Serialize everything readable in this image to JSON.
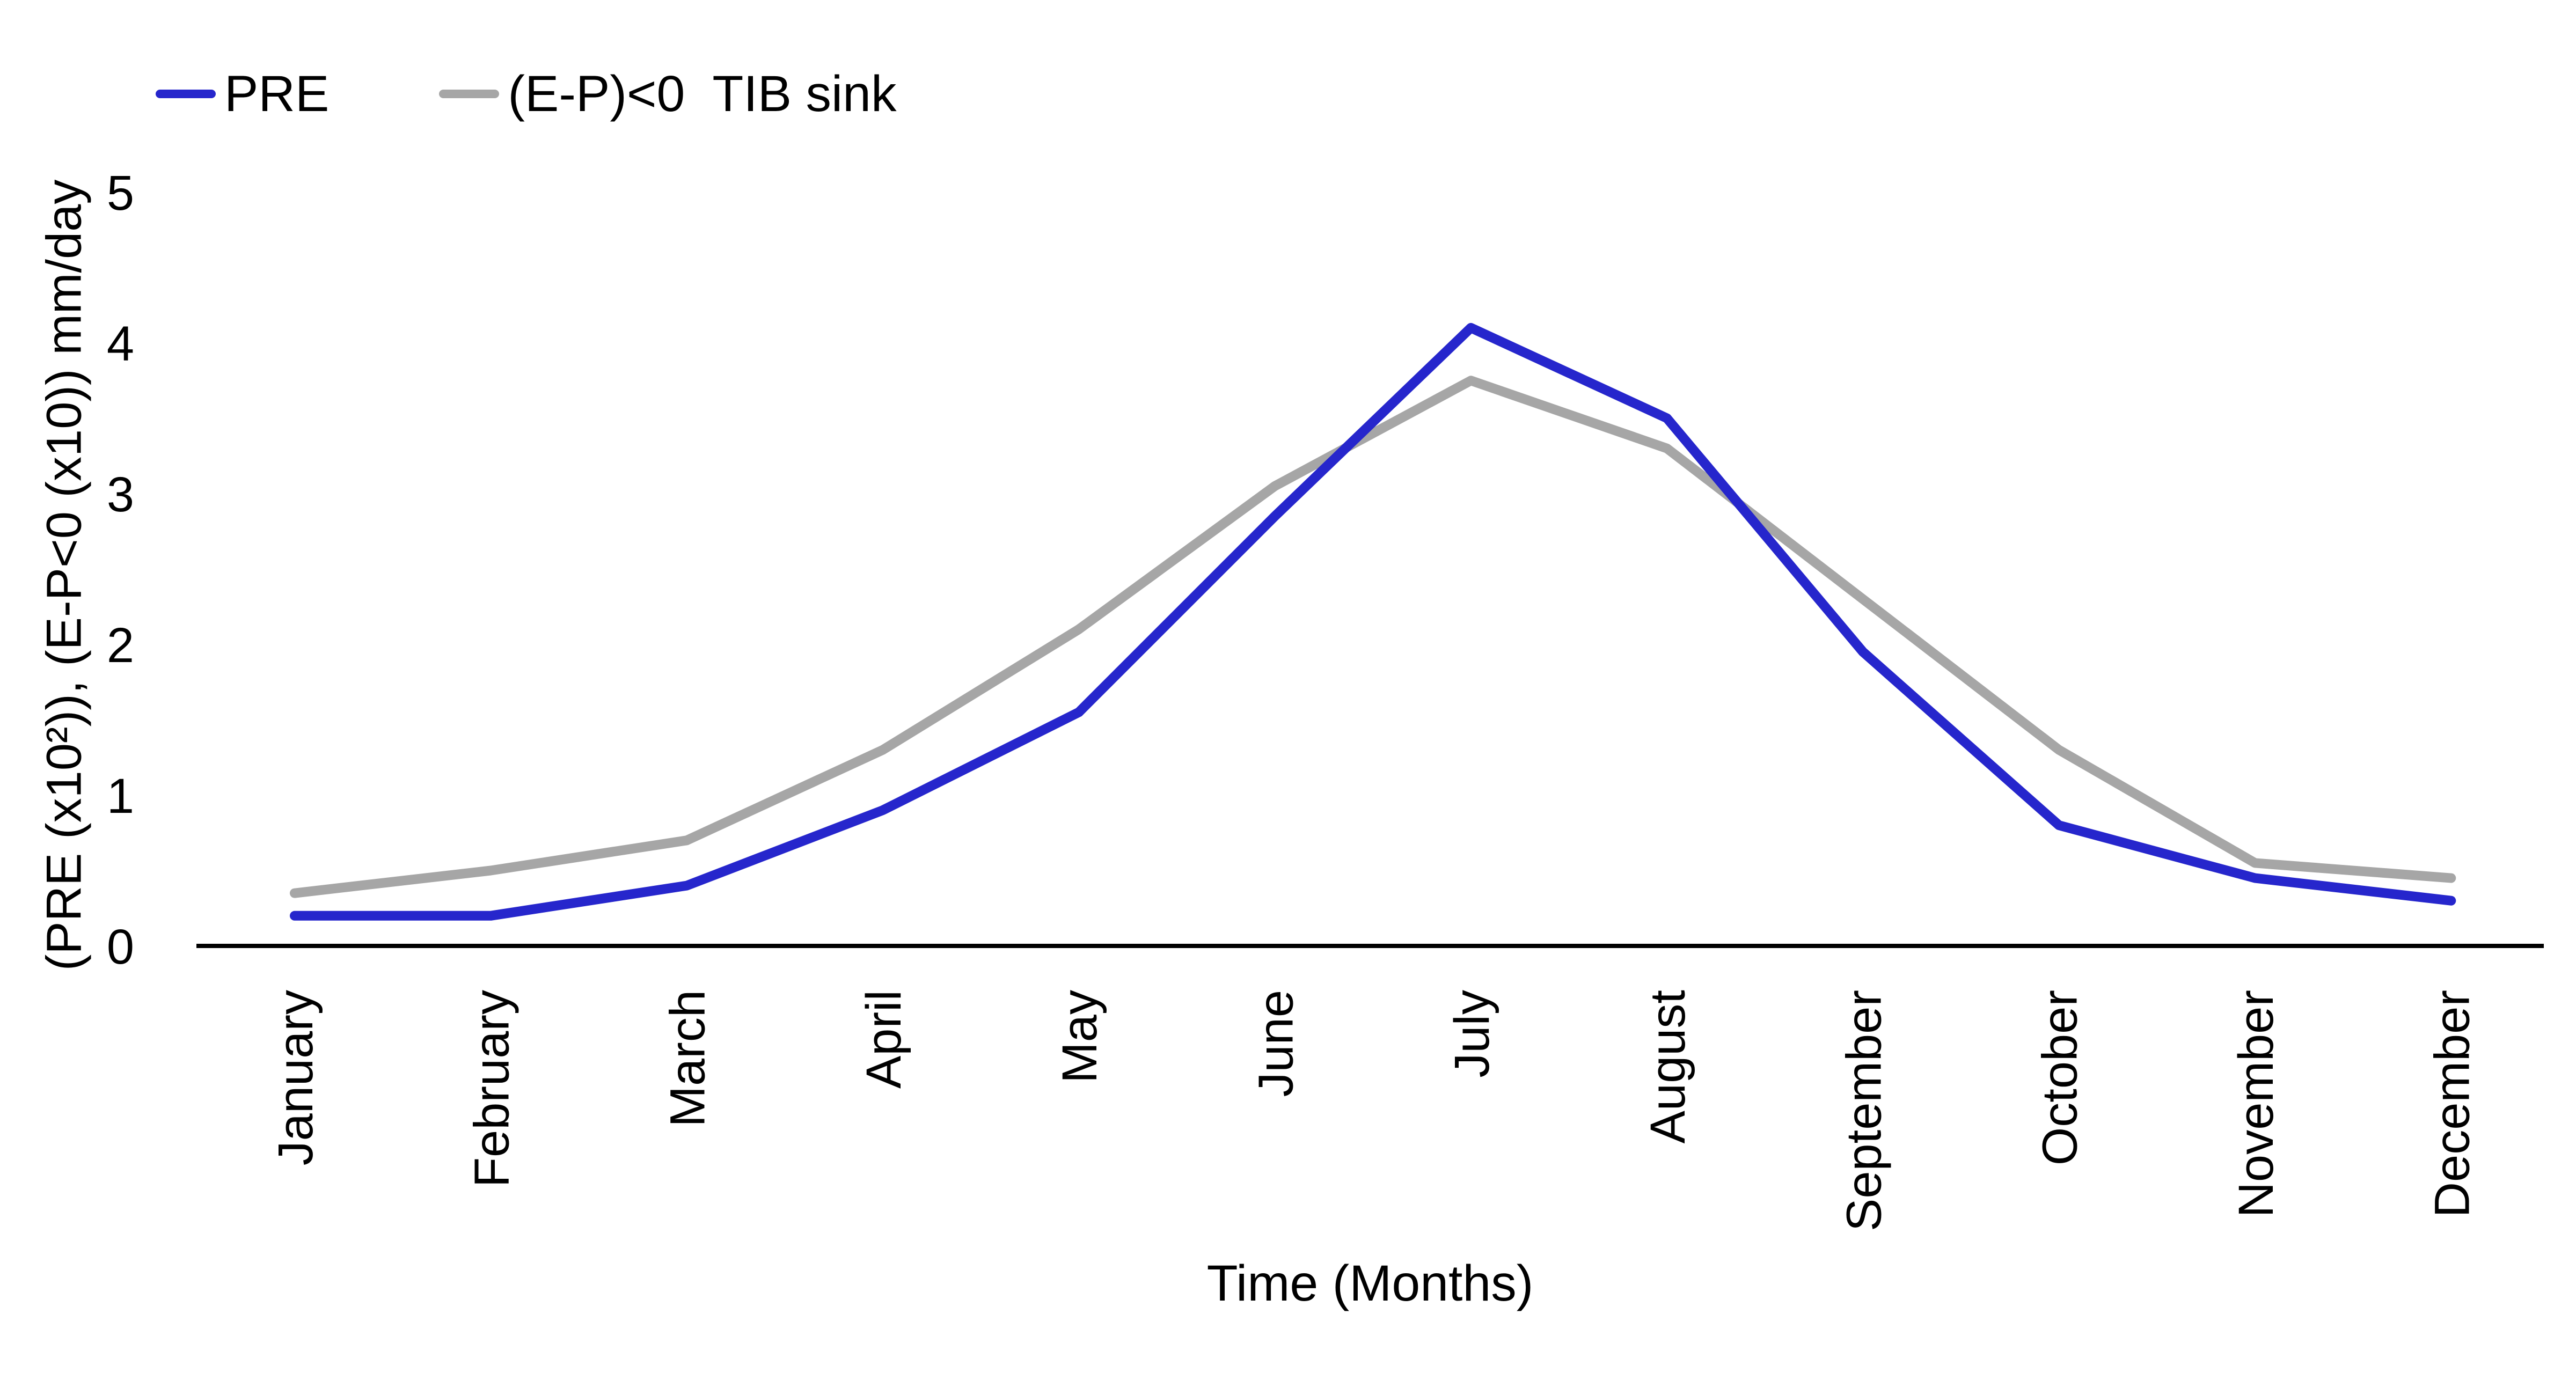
{
  "chart_data": {
    "type": "line",
    "title": "",
    "categories": [
      "January",
      "February",
      "March",
      "April",
      "May",
      "June",
      "July",
      "August",
      "September",
      "October",
      "November",
      "December"
    ],
    "series": [
      {
        "name": "PRE",
        "color": "#2626CC",
        "values": [
          0.2,
          0.2,
          0.4,
          0.9,
          1.55,
          2.85,
          4.1,
          3.5,
          1.95,
          0.8,
          0.45,
          0.3
        ]
      },
      {
        "name": "(E-P)<0  TIB sink",
        "color": "#A6A6A6",
        "values": [
          0.35,
          0.5,
          0.7,
          1.3,
          2.1,
          3.05,
          3.75,
          3.3,
          2.3,
          1.3,
          0.55,
          0.45
        ]
      }
    ],
    "xlabel": "Time (Months)",
    "ylabel": "(PRE (x10²)), (E-P<0 (x10)) mm/day",
    "ylim": [
      0,
      5
    ],
    "yticks": [
      0,
      1,
      2,
      3,
      4,
      5
    ],
    "grid": false,
    "axis_color": "#000000",
    "legend_position": "top-left"
  }
}
